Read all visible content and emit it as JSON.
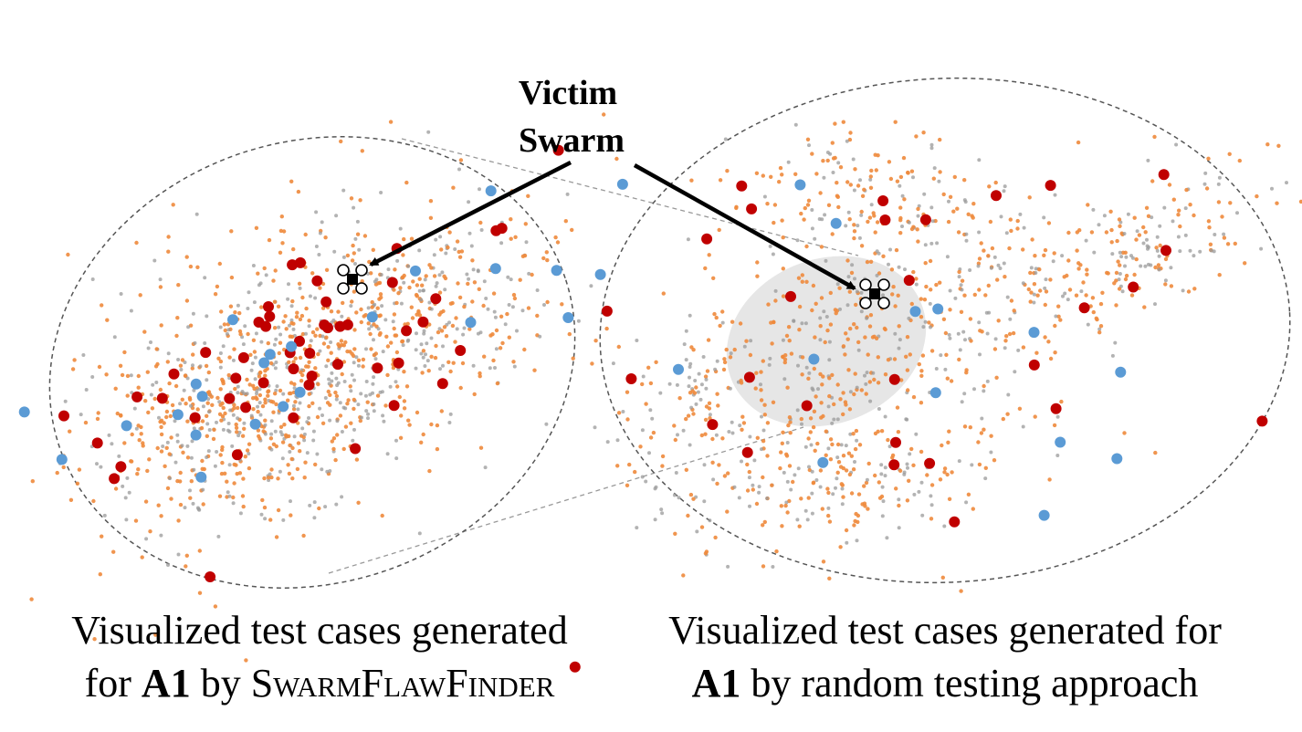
{
  "annotation": {
    "line1": "Victim",
    "line2": "Swarm"
  },
  "captions": {
    "left": {
      "line1": "Visualized test cases generated",
      "prefix": "for ",
      "bold": "A1",
      "mid": " by ",
      "tool": "SwarmFlawFinder"
    },
    "right": {
      "line1": "Visualized test cases generated for",
      "bold": "A1",
      "rest": " by random testing approach"
    }
  },
  "colors": {
    "orange_points": "#ee8a3c",
    "gray_points": "#9a9a9a",
    "red_points": "#c00000",
    "blue_points": "#5b9bd5",
    "highlight_region": "#e6e6e6",
    "outline": "#555555"
  },
  "icons": [
    "drone-icon",
    "drone-icon"
  ]
}
